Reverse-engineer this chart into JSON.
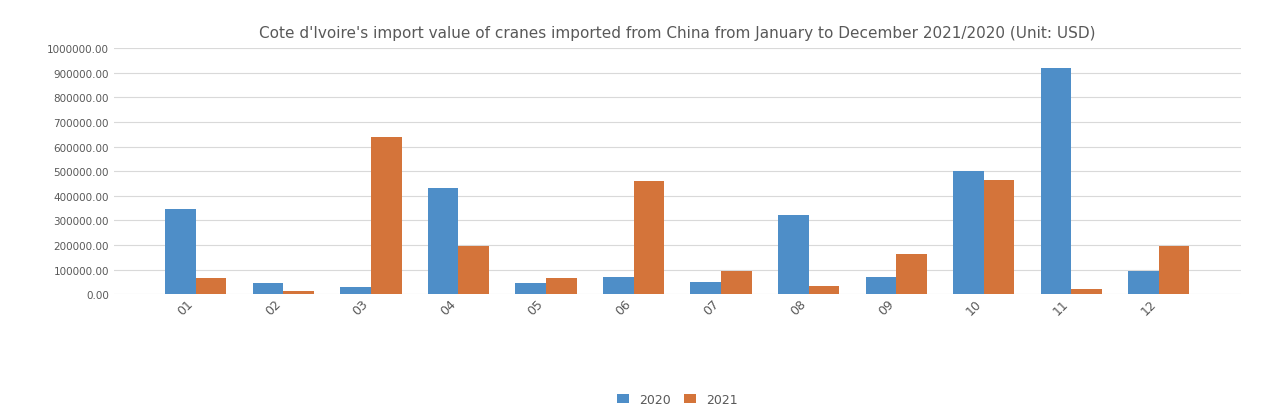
{
  "title": "Cote d'Ivoire's import value of cranes imported from China from January to December 2021/2020",
  "title_suffix": "(Unit: USD)",
  "categories": [
    "01",
    "02",
    "03",
    "04",
    "05",
    "06",
    "07",
    "08",
    "09",
    "10",
    "11",
    "12"
  ],
  "values_2020": [
    345000,
    45000,
    30000,
    430000,
    45000,
    70000,
    50000,
    320000,
    70000,
    500000,
    920000,
    95000
  ],
  "values_2021": [
    65000,
    15000,
    640000,
    195000,
    65000,
    460000,
    95000,
    35000,
    165000,
    465000,
    22000,
    195000
  ],
  "color_2020": "#4e8ec8",
  "color_2021": "#d4743a",
  "legend_2020": "2020",
  "legend_2021": "2021",
  "ylim": [
    0,
    1000000
  ],
  "ytick_step": 100000,
  "background_color": "#ffffff",
  "grid_color": "#d9d9d9",
  "bar_width": 0.35,
  "title_fontsize": 11,
  "tick_label_color": "#595959",
  "title_color": "#595959"
}
